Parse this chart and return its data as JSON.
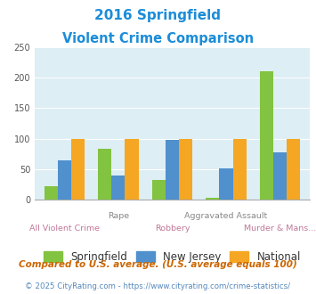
{
  "title_line1": "2016 Springfield",
  "title_line2": "Violent Crime Comparison",
  "categories": [
    "All Violent Crime",
    "Rape",
    "Robbery",
    "Aggravated Assault",
    "Murder & Mans..."
  ],
  "springfield": [
    23,
    83,
    32,
    4,
    211
  ],
  "new_jersey": [
    64,
    40,
    98,
    51,
    78
  ],
  "national": [
    100,
    100,
    100,
    100,
    100
  ],
  "color_springfield": "#82c341",
  "color_new_jersey": "#4f90cd",
  "color_national": "#f5a623",
  "ylim": [
    0,
    250
  ],
  "yticks": [
    0,
    50,
    100,
    150,
    200,
    250
  ],
  "background_color": "#ddeef4",
  "title_color": "#1b8dd8",
  "xtick_top_color": "#888888",
  "xtick_bot_color": "#c07898",
  "footnote1": "Compared to U.S. average. (U.S. average equals 100)",
  "footnote2": "© 2025 CityRating.com - https://www.cityrating.com/crime-statistics/",
  "footnote1_color": "#cc6600",
  "footnote2_color": "#5588bb",
  "legend_labels": [
    "Springfield",
    "New Jersey",
    "National"
  ],
  "bar_width": 0.25
}
